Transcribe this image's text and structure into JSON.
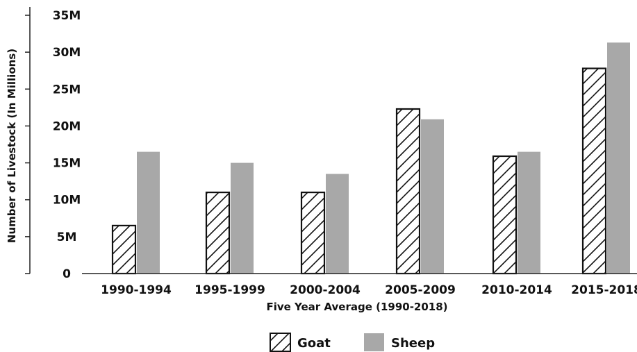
{
  "chart_data": {
    "type": "bar",
    "title": "",
    "xlabel": "Five Year Average (1990-2018)",
    "ylabel": "Number of Livestock (In Millions)",
    "categories": [
      "1990-1994",
      "1995-1999",
      "2000-2004",
      "2005-2009",
      "2010-2014",
      "2015-2018"
    ],
    "series": [
      {
        "name": "Goat",
        "values": [
          6.5,
          11,
          11,
          22.3,
          15.9,
          27.8
        ],
        "pattern": "diagonal-hatch",
        "color": "#ffffff"
      },
      {
        "name": "Sheep",
        "values": [
          16.5,
          15,
          13.5,
          20.9,
          16.5,
          31.3
        ],
        "color": "#a8a8a8"
      }
    ],
    "yticks": [
      0,
      5,
      10,
      15,
      20,
      25,
      30,
      35
    ],
    "ytick_labels": [
      "0",
      "5M",
      "10M",
      "15M",
      "20M",
      "25M",
      "30M",
      "35M"
    ],
    "ylim": [
      0,
      35
    ],
    "grid": false,
    "legend_position": "bottom-center"
  }
}
